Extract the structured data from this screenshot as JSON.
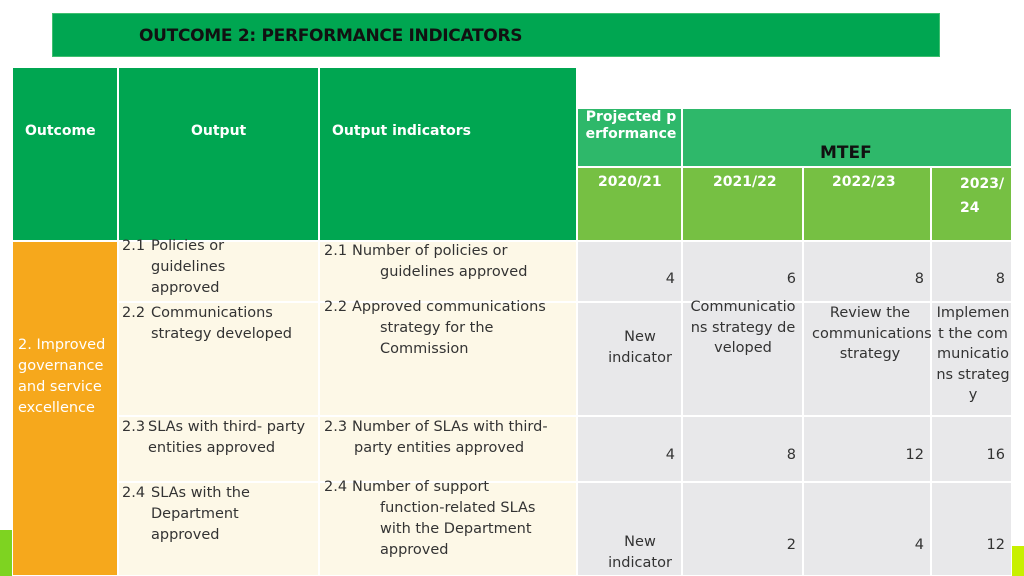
{
  "title": "OUTCOME 2: PERFORMANCE INDICATORS",
  "headers": {
    "outcome": "Outcome",
    "output": "Output",
    "output_indicators": "Output indicators",
    "projected": "Projected performance",
    "mtef": "MTEF",
    "y2020": "2020/21",
    "y2021": "2021/22",
    "y2022": "2022/23",
    "y2023": "2023/24"
  },
  "outcome": "2. Improved governance and service excellence",
  "rows": [
    {
      "output_num": "2.1",
      "output": "Policies or guidelines approved",
      "indicator_num": "2.1",
      "indicator": "Number of policies or guidelines approved",
      "v2020": "4",
      "v2021": "6",
      "v2022": "8",
      "v2023": "8"
    },
    {
      "output_num": "2.2",
      "output": "Communications strategy developed",
      "indicator_num": "2.2",
      "indicator": "Approved communications strategy for the Commission",
      "v2020": "New indicator",
      "v2021": "Communications strategy developed",
      "v2022": "Review the communications strategy",
      "v2023": "Implement the communications strategy"
    },
    {
      "output_num": "2.3",
      "output": "SLAs with third- party entities approved",
      "indicator_num": "2.3",
      "indicator": "Number of SLAs with third- party entities approved",
      "v2020": "4",
      "v2021": "8",
      "v2022": "12",
      "v2023": "16"
    },
    {
      "output_num": "2.4",
      "output": "SLAs with the Department approved",
      "indicator_num": "2.4",
      "indicator": "Number of support function-related SLAs with the Department approved",
      "v2020": "New indicator",
      "v2021": "2",
      "v2022": "4",
      "v2023": "12"
    }
  ]
}
